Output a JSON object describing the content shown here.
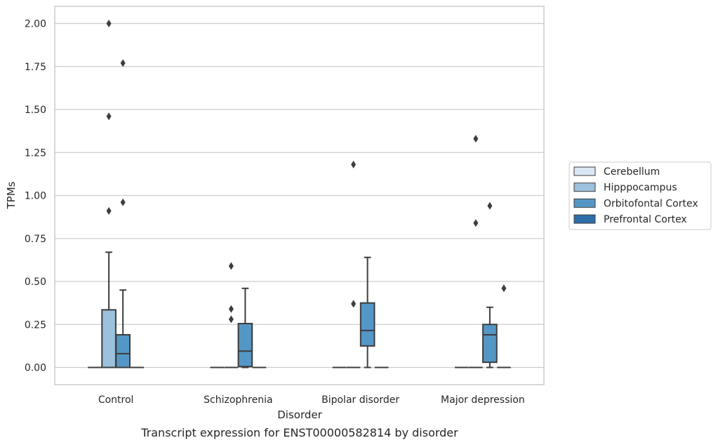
{
  "chart_data": {
    "type": "box",
    "caption": "Transcript expression for ENST00000582814 by disorder",
    "xlabel": "Disorder",
    "ylabel": "TPMs",
    "ylim": [
      -0.1,
      2.1
    ],
    "yticks": [
      "0.00",
      "0.25",
      "0.50",
      "0.75",
      "1.00",
      "1.25",
      "1.50",
      "1.75",
      "2.00"
    ],
    "grid": "horizontal",
    "legend_position": "right",
    "categories": [
      "Control",
      "Schizophrenia",
      "Bipolar disorder",
      "Major depression"
    ],
    "series": [
      {
        "name": "Cerebellum",
        "color": "#dbe8f4",
        "boxes": [
          {
            "q1": 0,
            "median": 0,
            "q3": 0,
            "whisker_low": 0,
            "whisker_high": 0,
            "outliers": []
          },
          {
            "q1": 0,
            "median": 0,
            "q3": 0,
            "whisker_low": 0,
            "whisker_high": 0,
            "outliers": []
          },
          {
            "q1": 0,
            "median": 0,
            "q3": 0,
            "whisker_low": 0,
            "whisker_high": 0,
            "outliers": []
          },
          {
            "q1": 0,
            "median": 0,
            "q3": 0,
            "whisker_low": 0,
            "whisker_high": 0,
            "outliers": []
          }
        ]
      },
      {
        "name": "Hipppocampus",
        "color": "#9cc1dc",
        "boxes": [
          {
            "q1": 0,
            "median": 0,
            "q3": 0.335,
            "whisker_low": 0,
            "whisker_high": 0.67,
            "outliers": [
              0.91,
              1.46,
              2.0
            ]
          },
          {
            "q1": 0,
            "median": 0,
            "q3": 0,
            "whisker_low": 0,
            "whisker_high": 0,
            "outliers": [
              0.59,
              0.34,
              0.28
            ]
          },
          {
            "q1": 0,
            "median": 0,
            "q3": 0,
            "whisker_low": 0,
            "whisker_high": 0,
            "outliers": [
              0.37,
              1.18
            ]
          },
          {
            "q1": 0,
            "median": 0,
            "q3": 0,
            "whisker_low": 0,
            "whisker_high": 0,
            "outliers": [
              0.84,
              1.33
            ]
          }
        ]
      },
      {
        "name": "Orbitofontal Cortex",
        "color": "#5497c6",
        "boxes": [
          {
            "q1": 0,
            "median": 0.08,
            "q3": 0.19,
            "whisker_low": 0,
            "whisker_high": 0.45,
            "outliers": [
              0.96,
              1.77
            ]
          },
          {
            "q1": 0.005,
            "median": 0.095,
            "q3": 0.255,
            "whisker_low": 0,
            "whisker_high": 0.46,
            "outliers": []
          },
          {
            "q1": 0.125,
            "median": 0.215,
            "q3": 0.375,
            "whisker_low": 0,
            "whisker_high": 0.64,
            "outliers": []
          },
          {
            "q1": 0.03,
            "median": 0.19,
            "q3": 0.25,
            "whisker_low": 0,
            "whisker_high": 0.35,
            "outliers": [
              0.94
            ]
          }
        ]
      },
      {
        "name": "Prefrontal Cortex",
        "color": "#2e6ea8",
        "boxes": [
          {
            "q1": 0,
            "median": 0,
            "q3": 0,
            "whisker_low": 0,
            "whisker_high": 0,
            "outliers": []
          },
          {
            "q1": 0,
            "median": 0,
            "q3": 0,
            "whisker_low": 0,
            "whisker_high": 0,
            "outliers": []
          },
          {
            "q1": 0,
            "median": 0,
            "q3": 0,
            "whisker_low": 0,
            "whisker_high": 0,
            "outliers": []
          },
          {
            "q1": 0,
            "median": 0,
            "q3": 0,
            "whisker_low": 0,
            "whisker_high": 0,
            "outliers": [
              0.46
            ]
          }
        ]
      }
    ]
  }
}
